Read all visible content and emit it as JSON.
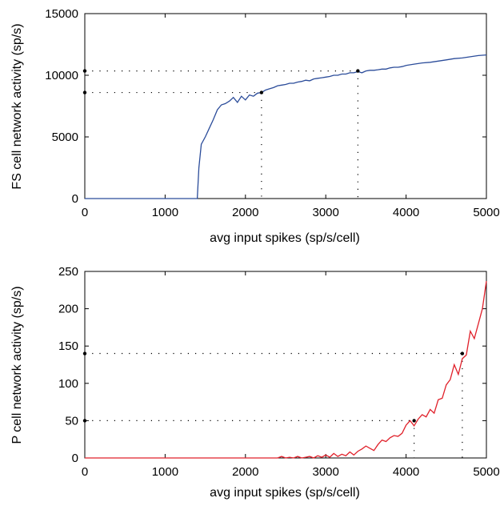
{
  "chart_data": [
    {
      "type": "line",
      "title": "",
      "xlabel": "avg input spikes (sp/s/cell)",
      "ylabel": "FS cell network activity (sp/s)",
      "xlim": [
        0,
        5000
      ],
      "ylim": [
        0,
        15000
      ],
      "xticks": [
        0,
        1000,
        2000,
        3000,
        4000,
        5000
      ],
      "yticks": [
        0,
        5000,
        10000,
        15000
      ],
      "grid": false,
      "series": [
        {
          "color": "#2b4c9a",
          "x": [
            0,
            500,
            1000,
            1400,
            1420,
            1450,
            1500,
            1550,
            1600,
            1650,
            1700,
            1750,
            1800,
            1850,
            1900,
            1950,
            2000,
            2050,
            2100,
            2150,
            2200,
            2250,
            2300,
            2350,
            2400,
            2450,
            2500,
            2550,
            2600,
            2650,
            2700,
            2750,
            2800,
            2850,
            2900,
            2950,
            3000,
            3050,
            3100,
            3150,
            3200,
            3250,
            3300,
            3350,
            3400,
            3450,
            3500,
            3550,
            3600,
            3650,
            3700,
            3750,
            3800,
            3850,
            3900,
            3950,
            4000,
            4100,
            4200,
            4300,
            4400,
            4500,
            4600,
            4700,
            4800,
            4900,
            5000
          ],
          "y": [
            0,
            0,
            0,
            0,
            2500,
            4400,
            5000,
            5700,
            6400,
            7200,
            7600,
            7700,
            7900,
            8200,
            7800,
            8300,
            8000,
            8400,
            8300,
            8550,
            8600,
            8800,
            8900,
            9000,
            9150,
            9200,
            9250,
            9350,
            9350,
            9450,
            9500,
            9600,
            9550,
            9700,
            9750,
            9800,
            9850,
            9900,
            10000,
            10000,
            10100,
            10100,
            10200,
            10200,
            10300,
            10200,
            10350,
            10400,
            10400,
            10450,
            10500,
            10500,
            10600,
            10650,
            10650,
            10700,
            10800,
            10900,
            11000,
            11050,
            11150,
            11250,
            11350,
            11400,
            11500,
            11600,
            11650
          ]
        }
      ],
      "markers": [
        {
          "x": 2200,
          "y": 8600
        },
        {
          "x": 3400,
          "y": 10350
        },
        {
          "x": 0,
          "y": 8600
        },
        {
          "x": 0,
          "y": 10350
        }
      ]
    },
    {
      "type": "line",
      "title": "",
      "xlabel": "avg input spikes (sp/s/cell)",
      "ylabel": "P cell network activity (sp/s)",
      "xlim": [
        0,
        5000
      ],
      "ylim": [
        0,
        250
      ],
      "xticks": [
        0,
        1000,
        2000,
        3000,
        4000,
        5000
      ],
      "yticks": [
        0,
        50,
        100,
        150,
        200,
        250
      ],
      "grid": false,
      "series": [
        {
          "color": "#e0202a",
          "x": [
            0,
            500,
            1000,
            1500,
            2000,
            2400,
            2450,
            2500,
            2550,
            2600,
            2650,
            2700,
            2750,
            2800,
            2850,
            2900,
            2950,
            3000,
            3050,
            3100,
            3150,
            3200,
            3250,
            3300,
            3350,
            3400,
            3450,
            3500,
            3550,
            3600,
            3650,
            3700,
            3750,
            3800,
            3850,
            3900,
            3950,
            4000,
            4050,
            4100,
            4150,
            4200,
            4250,
            4300,
            4350,
            4400,
            4450,
            4500,
            4550,
            4600,
            4650,
            4700,
            4750,
            4800,
            4850,
            4900,
            4950,
            5000
          ],
          "y": [
            0,
            0,
            0,
            0,
            0,
            0,
            2,
            0,
            1,
            0,
            2,
            0,
            1,
            2,
            0,
            3,
            1,
            4,
            1,
            6,
            2,
            5,
            3,
            8,
            4,
            9,
            12,
            16,
            13,
            10,
            18,
            24,
            22,
            27,
            30,
            29,
            33,
            44,
            50,
            43,
            52,
            58,
            55,
            65,
            60,
            78,
            80,
            98,
            105,
            125,
            112,
            133,
            138,
            170,
            160,
            180,
            200,
            237
          ]
        }
      ],
      "markers": [
        {
          "x": 4100,
          "y": 50
        },
        {
          "x": 4700,
          "y": 140
        },
        {
          "x": 0,
          "y": 50
        },
        {
          "x": 0,
          "y": 140
        }
      ]
    }
  ]
}
